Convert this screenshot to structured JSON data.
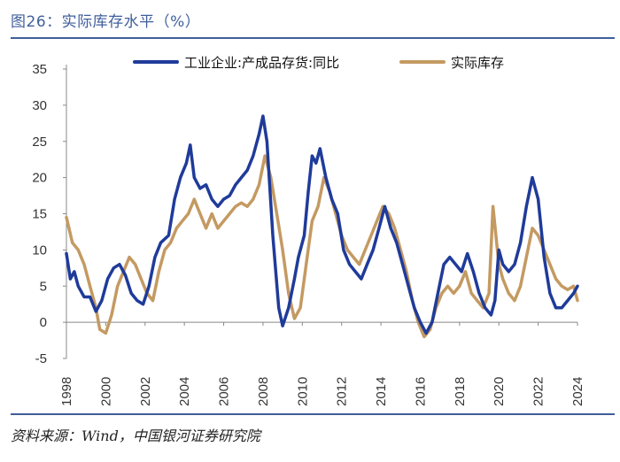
{
  "figure": {
    "title": "图26：实际库存水平（%）",
    "source": "资料来源：Wind，中国银河证券研究院"
  },
  "colors": {
    "accent": "#3f5f9b",
    "series1": "#1f3b9a",
    "series2": "#c49a62"
  },
  "chart_data": {
    "type": "line",
    "title": "实际库存水平（%）",
    "xlabel": "",
    "ylabel": "",
    "xlim": [
      1998,
      2024
    ],
    "ylim": [
      -5,
      35
    ],
    "yticks": [
      -5,
      0,
      5,
      10,
      15,
      20,
      25,
      30,
      35
    ],
    "xticks": [
      1998,
      2000,
      2002,
      2004,
      2006,
      2008,
      2010,
      2012,
      2014,
      2016,
      2018,
      2020,
      2022,
      2024
    ],
    "legend_position": "top",
    "series": [
      {
        "name": "工业企业:产成品存货:同比",
        "color": "#1f3b9a",
        "points": [
          [
            1998.0,
            9.5
          ],
          [
            1998.2,
            6
          ],
          [
            1998.4,
            7
          ],
          [
            1998.6,
            5
          ],
          [
            1998.9,
            3.5
          ],
          [
            1999.2,
            3.5
          ],
          [
            1999.5,
            1.5
          ],
          [
            1999.8,
            3
          ],
          [
            2000.1,
            6
          ],
          [
            2000.4,
            7.5
          ],
          [
            2000.7,
            8
          ],
          [
            2001.0,
            6.5
          ],
          [
            2001.3,
            4
          ],
          [
            2001.6,
            3
          ],
          [
            2001.9,
            2.5
          ],
          [
            2002.2,
            5
          ],
          [
            2002.5,
            9
          ],
          [
            2002.8,
            11
          ],
          [
            2003.2,
            12
          ],
          [
            2003.5,
            17
          ],
          [
            2003.8,
            20
          ],
          [
            2004.1,
            22
          ],
          [
            2004.3,
            24.5
          ],
          [
            2004.5,
            20
          ],
          [
            2004.8,
            18.5
          ],
          [
            2005.1,
            19
          ],
          [
            2005.4,
            17
          ],
          [
            2005.7,
            16
          ],
          [
            2006.0,
            17
          ],
          [
            2006.3,
            17.5
          ],
          [
            2006.6,
            19
          ],
          [
            2006.9,
            20
          ],
          [
            2007.2,
            21
          ],
          [
            2007.5,
            23
          ],
          [
            2007.8,
            26
          ],
          [
            2008.0,
            28.5
          ],
          [
            2008.2,
            25
          ],
          [
            2008.5,
            12
          ],
          [
            2008.8,
            2
          ],
          [
            2009.0,
            -0.5
          ],
          [
            2009.3,
            2
          ],
          [
            2009.6,
            6
          ],
          [
            2009.8,
            9
          ],
          [
            2010.1,
            12
          ],
          [
            2010.3,
            18
          ],
          [
            2010.5,
            23
          ],
          [
            2010.7,
            22
          ],
          [
            2010.9,
            24
          ],
          [
            2011.2,
            20
          ],
          [
            2011.5,
            17
          ],
          [
            2011.8,
            15
          ],
          [
            2012.1,
            10
          ],
          [
            2012.4,
            8
          ],
          [
            2012.7,
            7
          ],
          [
            2013.0,
            6
          ],
          [
            2013.3,
            8
          ],
          [
            2013.6,
            10
          ],
          [
            2013.9,
            13
          ],
          [
            2014.2,
            16
          ],
          [
            2014.5,
            13
          ],
          [
            2014.8,
            11
          ],
          [
            2015.1,
            8
          ],
          [
            2015.4,
            5
          ],
          [
            2015.7,
            2
          ],
          [
            2016.0,
            0
          ],
          [
            2016.3,
            -1.5
          ],
          [
            2016.6,
            0
          ],
          [
            2016.9,
            4
          ],
          [
            2017.2,
            8
          ],
          [
            2017.5,
            9
          ],
          [
            2017.8,
            8
          ],
          [
            2018.1,
            7
          ],
          [
            2018.4,
            9.5
          ],
          [
            2018.7,
            7
          ],
          [
            2019.0,
            4
          ],
          [
            2019.3,
            2
          ],
          [
            2019.6,
            1
          ],
          [
            2019.8,
            3
          ],
          [
            2020.0,
            10
          ],
          [
            2020.2,
            8
          ],
          [
            2020.5,
            7
          ],
          [
            2020.8,
            8
          ],
          [
            2021.1,
            11
          ],
          [
            2021.4,
            16
          ],
          [
            2021.7,
            20
          ],
          [
            2022.0,
            17
          ],
          [
            2022.3,
            9
          ],
          [
            2022.6,
            4
          ],
          [
            2022.9,
            2
          ],
          [
            2023.2,
            2
          ],
          [
            2023.5,
            3
          ],
          [
            2023.8,
            4
          ],
          [
            2024.0,
            5
          ]
        ]
      },
      {
        "name": "实际库存",
        "color": "#c49a62",
        "points": [
          [
            1998.0,
            14.5
          ],
          [
            1998.3,
            11
          ],
          [
            1998.6,
            10
          ],
          [
            1998.9,
            8
          ],
          [
            1999.2,
            5
          ],
          [
            1999.5,
            2
          ],
          [
            1999.7,
            -1
          ],
          [
            2000.0,
            -1.5
          ],
          [
            2000.3,
            1
          ],
          [
            2000.6,
            5
          ],
          [
            2000.9,
            7
          ],
          [
            2001.2,
            9
          ],
          [
            2001.5,
            8
          ],
          [
            2001.8,
            6
          ],
          [
            2002.1,
            4
          ],
          [
            2002.4,
            3
          ],
          [
            2002.7,
            7
          ],
          [
            2003.0,
            10
          ],
          [
            2003.3,
            11
          ],
          [
            2003.6,
            13
          ],
          [
            2003.9,
            14
          ],
          [
            2004.2,
            15
          ],
          [
            2004.5,
            17
          ],
          [
            2004.8,
            15
          ],
          [
            2005.1,
            13
          ],
          [
            2005.4,
            15
          ],
          [
            2005.7,
            13
          ],
          [
            2006.0,
            14
          ],
          [
            2006.3,
            15
          ],
          [
            2006.6,
            16
          ],
          [
            2006.9,
            16.5
          ],
          [
            2007.2,
            16
          ],
          [
            2007.5,
            17
          ],
          [
            2007.8,
            19
          ],
          [
            2008.1,
            23
          ],
          [
            2008.4,
            20
          ],
          [
            2008.7,
            15
          ],
          [
            2009.0,
            10
          ],
          [
            2009.3,
            4
          ],
          [
            2009.6,
            0.5
          ],
          [
            2009.9,
            2
          ],
          [
            2010.2,
            8
          ],
          [
            2010.5,
            14
          ],
          [
            2010.8,
            16
          ],
          [
            2011.1,
            20
          ],
          [
            2011.4,
            18
          ],
          [
            2011.7,
            15
          ],
          [
            2012.0,
            12
          ],
          [
            2012.3,
            10
          ],
          [
            2012.6,
            9
          ],
          [
            2012.9,
            8
          ],
          [
            2013.2,
            10
          ],
          [
            2013.5,
            12
          ],
          [
            2013.8,
            14
          ],
          [
            2014.1,
            16
          ],
          [
            2014.4,
            15
          ],
          [
            2014.7,
            13
          ],
          [
            2015.0,
            10
          ],
          [
            2015.3,
            7
          ],
          [
            2015.6,
            3
          ],
          [
            2015.9,
            0
          ],
          [
            2016.2,
            -2
          ],
          [
            2016.5,
            -1
          ],
          [
            2016.8,
            2
          ],
          [
            2017.1,
            4
          ],
          [
            2017.4,
            5
          ],
          [
            2017.7,
            4
          ],
          [
            2018.0,
            5
          ],
          [
            2018.3,
            7
          ],
          [
            2018.6,
            4
          ],
          [
            2018.9,
            3
          ],
          [
            2019.2,
            2
          ],
          [
            2019.5,
            4
          ],
          [
            2019.7,
            16
          ],
          [
            2020.0,
            8
          ],
          [
            2020.2,
            6
          ],
          [
            2020.5,
            4
          ],
          [
            2020.8,
            3
          ],
          [
            2021.1,
            5
          ],
          [
            2021.4,
            9
          ],
          [
            2021.7,
            13
          ],
          [
            2022.0,
            12
          ],
          [
            2022.3,
            10
          ],
          [
            2022.6,
            8
          ],
          [
            2022.9,
            6
          ],
          [
            2023.2,
            5
          ],
          [
            2023.5,
            4.5
          ],
          [
            2023.8,
            5
          ],
          [
            2024.0,
            3
          ]
        ]
      }
    ]
  }
}
